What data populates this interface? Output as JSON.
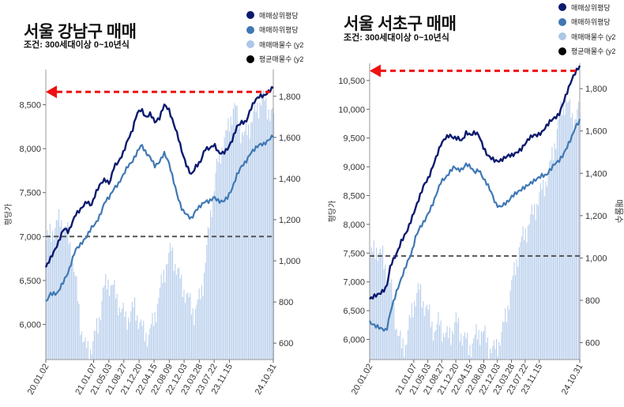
{
  "chart_data": [
    {
      "type": "line",
      "title": "서울 강남구 매매",
      "subtitle": "조건: 300세대이상 0~10년식",
      "ylabel": "평당가",
      "y2label": "",
      "ylim": [
        5600,
        8900
      ],
      "y2lim": [
        520,
        1930
      ],
      "yticks": [
        "6,000",
        "6,500",
        "7,000",
        "7,500",
        "8,000",
        "8,500"
      ],
      "yticks_values": [
        6000,
        6500,
        7000,
        7500,
        8000,
        8500
      ],
      "y2ticks": [
        "600",
        "800",
        "1,000",
        "1,200",
        "1,400",
        "1,600",
        "1,800"
      ],
      "y2ticks_values": [
        600,
        800,
        1000,
        1200,
        1400,
        1600,
        1800
      ],
      "xticks": [
        "20.01.02",
        "21.01.07",
        "21.05.03",
        "21.08.27",
        "21.12.20",
        "22.04.15",
        "22.08.09",
        "22.12.03",
        "23.03.28",
        "23.07.22",
        "23.11.15",
        "24.10.31"
      ],
      "xticks_t": [
        0,
        0.21,
        0.277,
        0.343,
        0.41,
        0.476,
        0.543,
        0.608,
        0.675,
        0.74,
        0.807,
        1
      ],
      "reference_line": 7000,
      "arrow": "max",
      "legend": [
        {
          "label": "매매상위평당",
          "color": "#0c1a6e"
        },
        {
          "label": "매매하위평당",
          "color": "#3f78b4"
        },
        {
          "label": "매매매물수 (y2",
          "color": "#aec6e6"
        },
        {
          "label": "평균매물수 (y2",
          "color": "#000000"
        }
      ],
      "series": [
        {
          "name": "매매상위평당",
          "t": [
            0,
            0.02,
            0.05,
            0.08,
            0.1,
            0.13,
            0.15,
            0.18,
            0.2,
            0.22,
            0.24,
            0.26,
            0.28,
            0.3,
            0.32,
            0.34,
            0.36,
            0.38,
            0.4,
            0.42,
            0.44,
            0.46,
            0.48,
            0.5,
            0.52,
            0.54,
            0.56,
            0.58,
            0.6,
            0.62,
            0.64,
            0.66,
            0.68,
            0.7,
            0.72,
            0.74,
            0.76,
            0.78,
            0.8,
            0.82,
            0.84,
            0.86,
            0.88,
            0.9,
            0.92,
            0.94,
            0.96,
            0.98,
            1
          ],
          "values": [
            6650,
            6750,
            6900,
            7100,
            7050,
            7250,
            7300,
            7400,
            7350,
            7500,
            7600,
            7650,
            7600,
            7800,
            7850,
            7950,
            8100,
            8200,
            8400,
            8450,
            8350,
            8400,
            8300,
            8350,
            8500,
            8450,
            8300,
            8150,
            7950,
            7800,
            7700,
            7800,
            7850,
            8000,
            8000,
            8050,
            7950,
            7950,
            8000,
            8100,
            8250,
            8300,
            8300,
            8450,
            8550,
            8600,
            8600,
            8650,
            8700
          ]
        },
        {
          "name": "매매하위평당",
          "t": [
            0,
            0.02,
            0.05,
            0.08,
            0.1,
            0.13,
            0.15,
            0.18,
            0.2,
            0.22,
            0.24,
            0.26,
            0.28,
            0.3,
            0.32,
            0.34,
            0.36,
            0.38,
            0.4,
            0.42,
            0.44,
            0.46,
            0.48,
            0.5,
            0.52,
            0.54,
            0.56,
            0.58,
            0.6,
            0.62,
            0.64,
            0.66,
            0.68,
            0.7,
            0.72,
            0.74,
            0.76,
            0.78,
            0.8,
            0.82,
            0.84,
            0.86,
            0.88,
            0.9,
            0.92,
            0.94,
            0.96,
            0.98,
            1
          ],
          "values": [
            6250,
            6350,
            6350,
            6500,
            6600,
            6850,
            6900,
            7000,
            7100,
            7150,
            7250,
            7400,
            7450,
            7550,
            7600,
            7700,
            7800,
            7850,
            7950,
            8050,
            7950,
            7900,
            7800,
            7850,
            7950,
            7850,
            7650,
            7450,
            7300,
            7250,
            7200,
            7300,
            7350,
            7400,
            7400,
            7450,
            7400,
            7400,
            7450,
            7550,
            7700,
            7800,
            7850,
            7950,
            8000,
            8050,
            8050,
            8100,
            8150
          ]
        },
        {
          "name": "매매매물수 (y2",
          "t": [
            0,
            0.03,
            0.06,
            0.09,
            0.11,
            0.13,
            0.15,
            0.17,
            0.19,
            0.21,
            0.23,
            0.25,
            0.27,
            0.29,
            0.31,
            0.33,
            0.35,
            0.37,
            0.39,
            0.41,
            0.43,
            0.45,
            0.47,
            0.49,
            0.51,
            0.53,
            0.55,
            0.57,
            0.59,
            0.61,
            0.63,
            0.65,
            0.67,
            0.69,
            0.71,
            0.73,
            0.75,
            0.77,
            0.79,
            0.81,
            0.83,
            0.85,
            0.87,
            0.89,
            0.91,
            0.93,
            0.95,
            0.97,
            1
          ],
          "values": [
            1100,
            1150,
            1200,
            1150,
            1050,
            900,
            700,
            580,
            560,
            620,
            700,
            850,
            900,
            880,
            820,
            760,
            720,
            740,
            780,
            700,
            650,
            640,
            700,
            800,
            900,
            1000,
            1050,
            980,
            900,
            850,
            800,
            750,
            800,
            900,
            1100,
            1300,
            1450,
            1550,
            1600,
            1700,
            1750,
            1650,
            1600,
            1650,
            1700,
            1750,
            1800,
            1750,
            1700
          ]
        }
      ]
    },
    {
      "type": "line",
      "title": "서울 서초구 매매",
      "subtitle": "조건: 300세대이상 0~10년식",
      "ylabel": "평당가",
      "y2label": "매물수",
      "ylim": [
        5650,
        10800
      ],
      "y2lim": [
        520,
        1920
      ],
      "yticks": [
        "6,000",
        "6,500",
        "7,000",
        "7,500",
        "8,000",
        "8,500",
        "9,000",
        "9,500",
        "10,000",
        "10,500"
      ],
      "yticks_values": [
        6000,
        6500,
        7000,
        7500,
        8000,
        8500,
        9000,
        9500,
        10000,
        10500
      ],
      "y2ticks": [
        "600",
        "800",
        "1,000",
        "1,200",
        "1,400",
        "1,600",
        "1,800"
      ],
      "y2ticks_values": [
        600,
        800,
        1000,
        1200,
        1400,
        1600,
        1800
      ],
      "xticks": [
        "20.01.02",
        "21.01.07",
        "21.05.03",
        "21.08.27",
        "21.12.20",
        "22.04.15",
        "22.08.09",
        "22.12.03",
        "23.03.28",
        "23.07.22",
        "23.11.15",
        "24.10.31"
      ],
      "xticks_t": [
        0,
        0.21,
        0.277,
        0.343,
        0.41,
        0.476,
        0.543,
        0.608,
        0.675,
        0.74,
        0.807,
        1
      ],
      "reference_line": 7450,
      "arrow": "max",
      "legend": [
        {
          "label": "매매상위평당",
          "color": "#0c1a6e"
        },
        {
          "label": "매매하위평당",
          "color": "#3f78b4"
        },
        {
          "label": "매매매물수 (y2",
          "color": "#aec6e6"
        },
        {
          "label": "평균매물수 (y2",
          "color": "#000000"
        }
      ],
      "series": [
        {
          "name": "매매상위평당",
          "t": [
            0,
            0.02,
            0.05,
            0.08,
            0.1,
            0.13,
            0.15,
            0.18,
            0.2,
            0.22,
            0.24,
            0.26,
            0.28,
            0.3,
            0.32,
            0.34,
            0.36,
            0.38,
            0.4,
            0.42,
            0.44,
            0.46,
            0.48,
            0.5,
            0.52,
            0.54,
            0.56,
            0.58,
            0.6,
            0.62,
            0.64,
            0.66,
            0.68,
            0.7,
            0.72,
            0.74,
            0.76,
            0.78,
            0.8,
            0.82,
            0.84,
            0.86,
            0.88,
            0.9,
            0.92,
            0.94,
            0.96,
            0.98,
            1
          ],
          "values": [
            6700,
            6750,
            6800,
            6900,
            7300,
            7500,
            7700,
            7900,
            8100,
            8300,
            8500,
            8700,
            8800,
            9000,
            9200,
            9400,
            9500,
            9550,
            9500,
            9500,
            9450,
            9600,
            9550,
            9600,
            9550,
            9350,
            9200,
            9150,
            9100,
            9100,
            9150,
            9200,
            9200,
            9250,
            9300,
            9400,
            9500,
            9550,
            9550,
            9600,
            9700,
            9800,
            9850,
            9900,
            10100,
            10300,
            10500,
            10650,
            10750
          ]
        },
        {
          "name": "매매하위평당",
          "t": [
            0,
            0.02,
            0.05,
            0.08,
            0.1,
            0.13,
            0.15,
            0.18,
            0.2,
            0.22,
            0.24,
            0.26,
            0.28,
            0.3,
            0.32,
            0.34,
            0.36,
            0.38,
            0.4,
            0.42,
            0.44,
            0.46,
            0.48,
            0.5,
            0.52,
            0.54,
            0.56,
            0.58,
            0.6,
            0.62,
            0.64,
            0.66,
            0.68,
            0.7,
            0.72,
            0.74,
            0.76,
            0.78,
            0.8,
            0.82,
            0.84,
            0.86,
            0.88,
            0.9,
            0.92,
            0.94,
            0.96,
            0.98,
            1
          ],
          "values": [
            6300,
            6250,
            6200,
            6150,
            6500,
            6850,
            7050,
            7350,
            7500,
            7800,
            7950,
            8050,
            8200,
            8350,
            8550,
            8750,
            8800,
            8900,
            9000,
            8950,
            8950,
            9050,
            9000,
            8900,
            8950,
            8800,
            8700,
            8550,
            8350,
            8300,
            8350,
            8400,
            8500,
            8550,
            8600,
            8650,
            8700,
            8750,
            8800,
            8850,
            8850,
            8950,
            9050,
            9100,
            9200,
            9350,
            9500,
            9700,
            9800
          ]
        },
        {
          "name": "매매매물수 (y2",
          "t": [
            0,
            0.03,
            0.06,
            0.09,
            0.11,
            0.13,
            0.15,
            0.17,
            0.19,
            0.21,
            0.23,
            0.25,
            0.27,
            0.29,
            0.31,
            0.33,
            0.35,
            0.37,
            0.39,
            0.41,
            0.43,
            0.45,
            0.47,
            0.49,
            0.51,
            0.53,
            0.55,
            0.57,
            0.59,
            0.61,
            0.63,
            0.65,
            0.67,
            0.69,
            0.71,
            0.73,
            0.75,
            0.77,
            0.79,
            0.81,
            0.83,
            0.85,
            0.87,
            0.89,
            0.91,
            0.93,
            0.95,
            0.97,
            1
          ],
          "values": [
            1000,
            1050,
            1000,
            900,
            800,
            650,
            580,
            600,
            700,
            800,
            850,
            800,
            760,
            700,
            650,
            700,
            650,
            620,
            660,
            700,
            650,
            620,
            580,
            600,
            640,
            660,
            620,
            580,
            560,
            600,
            650,
            750,
            850,
            950,
            1050,
            1100,
            1150,
            1200,
            1250,
            1300,
            1350,
            1400,
            1500,
            1600,
            1700,
            1750,
            1700,
            1650,
            1700
          ]
        }
      ]
    }
  ]
}
